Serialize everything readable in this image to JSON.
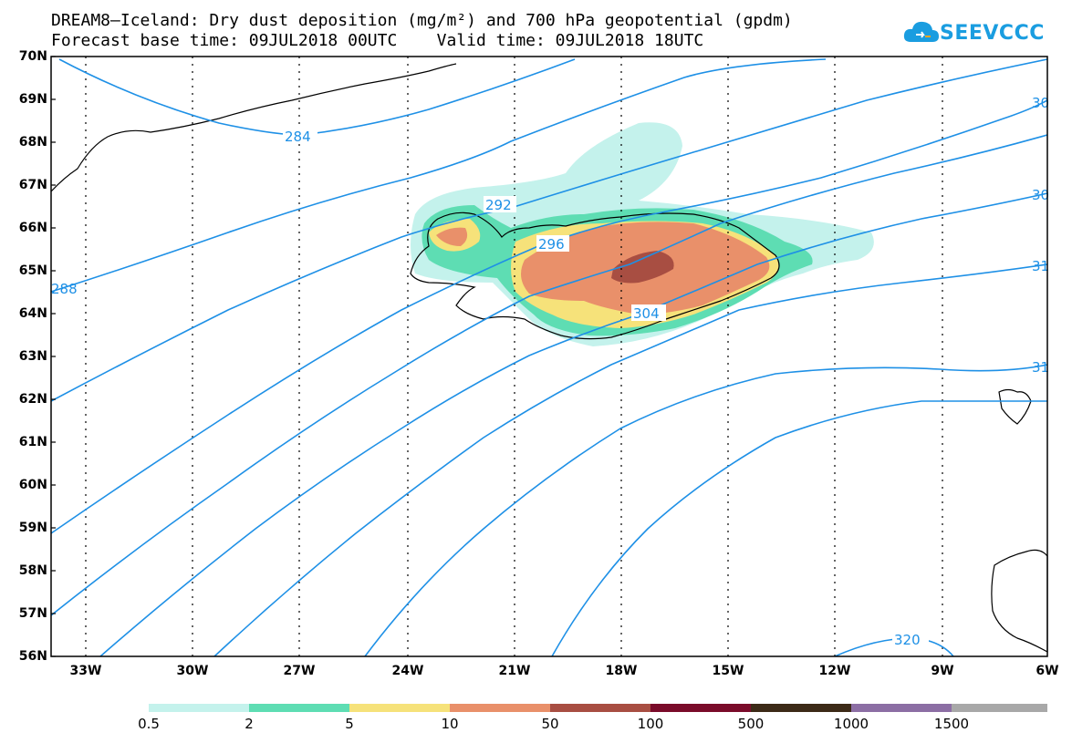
{
  "title_line1": "DREAM8–Iceland: Dry dust deposition (mg/m²) and 700 hPa geopotential (gpdm)",
  "title_line2": "Forecast base time: 09JUL2018 00UTC    Valid time: 09JUL2018 18UTC",
  "logo_text": "SEEVCCC",
  "lat_labels": [
    "70N",
    "69N",
    "68N",
    "67N",
    "66N",
    "65N",
    "64N",
    "63N",
    "62N",
    "61N",
    "60N",
    "59N",
    "58N",
    "57N",
    "56N"
  ],
  "lon_labels": [
    "33W",
    "30W",
    "27W",
    "24W",
    "21W",
    "18W",
    "15W",
    "12W",
    "9W",
    "6W"
  ],
  "contour_labels": [
    "284",
    "292",
    "296",
    "304",
    "320",
    "288",
    "30",
    "30",
    "31",
    "31"
  ],
  "colorbar": {
    "labels": [
      "0.5",
      "2",
      "5",
      "10",
      "50",
      "100",
      "500",
      "1000",
      "1500"
    ],
    "colors": [
      "#c4f2ec",
      "#5ede b3",
      "#f6e27a",
      "#e9906a",
      "#a84e42",
      "#7a0b2a",
      "#3c2a17",
      "#8c6ea4",
      "#a8a8a8"
    ]
  },
  "colors": {
    "contour": "#1e90e6",
    "coast": "#000000"
  }
}
